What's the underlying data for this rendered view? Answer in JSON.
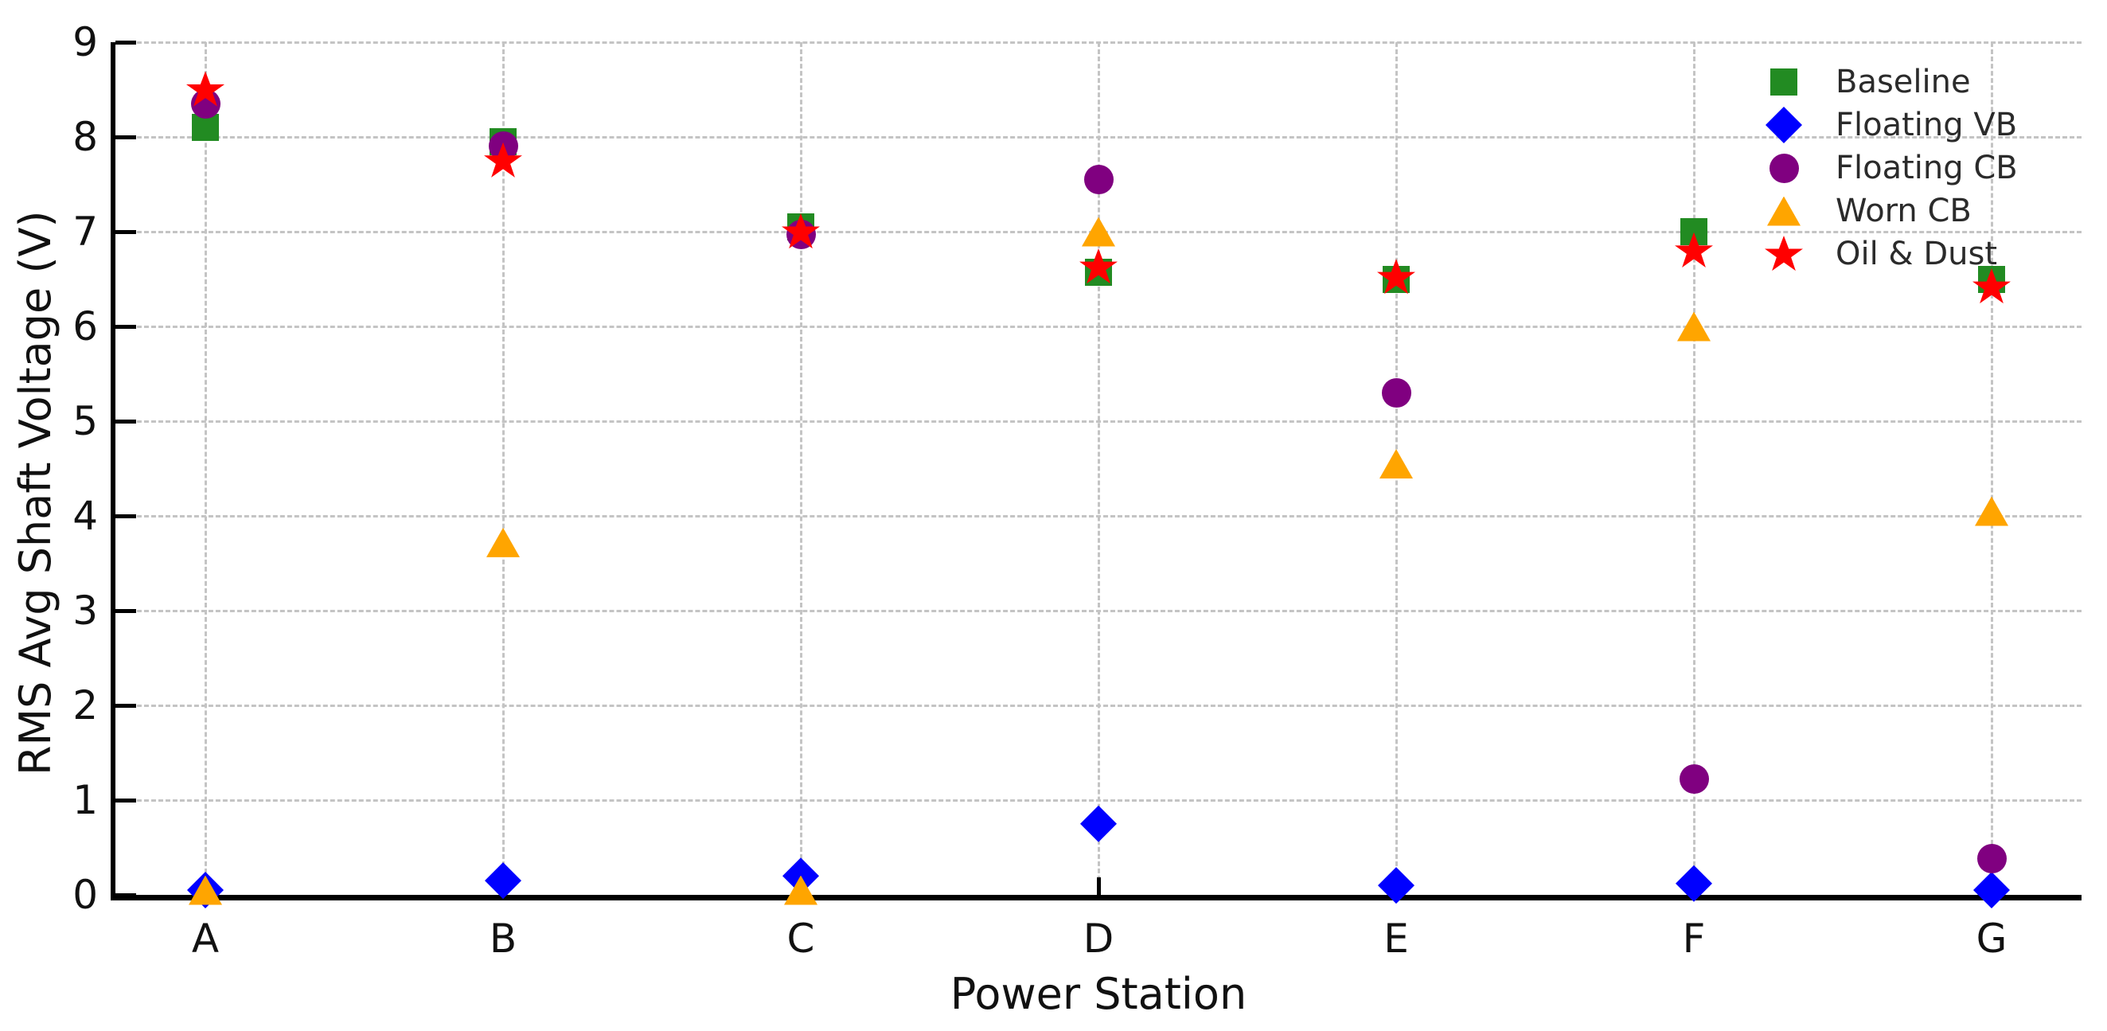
{
  "chart_data": {
    "type": "scatter",
    "title": "",
    "xlabel": "Power Station",
    "ylabel": "RMS Avg Shaft Voltage (V)",
    "categories": [
      "A",
      "B",
      "C",
      "D",
      "E",
      "F",
      "G"
    ],
    "ylim": [
      0,
      9
    ],
    "yticks": [
      "0",
      "1",
      "2",
      "3",
      "4",
      "5",
      "6",
      "7",
      "8",
      "9"
    ],
    "grid": "dashed-both-axes",
    "legend_position": "upper-right",
    "legend_frame": false,
    "series": [
      {
        "name": "Baseline",
        "marker": "square",
        "color": "#228B22",
        "values": [
          8.1,
          7.95,
          7.05,
          6.57,
          6.5,
          7.0,
          6.5
        ]
      },
      {
        "name": "Floating VB",
        "marker": "diamond",
        "color": "#0000FF",
        "values": [
          0.05,
          0.15,
          0.2,
          0.75,
          0.1,
          0.12,
          0.05
        ]
      },
      {
        "name": "Floating CB",
        "marker": "circle",
        "color": "#800080",
        "values": [
          8.35,
          7.9,
          6.97,
          7.55,
          5.3,
          1.22,
          0.38
        ]
      },
      {
        "name": "Worn CB",
        "marker": "triangle",
        "color": "#FFA500",
        "values": [
          0.05,
          3.72,
          0.05,
          7.0,
          4.55,
          6.0,
          4.05
        ]
      },
      {
        "name": "Oil & Dust",
        "marker": "star",
        "color": "#FF0000",
        "values": [
          8.5,
          7.75,
          7.0,
          6.63,
          6.52,
          6.8,
          6.42
        ]
      }
    ],
    "colors": {
      "grid": "#c4c4c4",
      "spine": "#000000",
      "tick_label": "#111111",
      "legend_text": "#2b2b2b",
      "background": "#ffffff"
    }
  }
}
